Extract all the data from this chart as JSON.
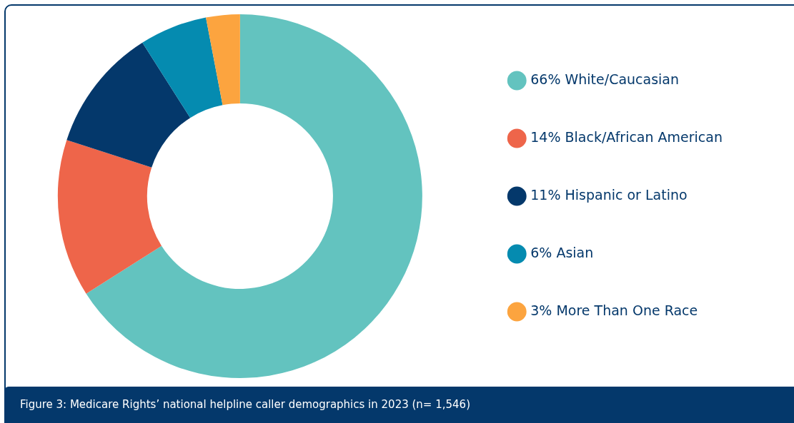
{
  "chart_data": {
    "type": "donut",
    "categories": [
      "66% White/Caucasian",
      "14% Black/African American",
      "11% Hispanic or Latino",
      "6% Asian",
      "3% More Than One Race"
    ],
    "values": [
      66,
      14,
      11,
      6,
      3
    ],
    "colors": [
      "#63c3bf",
      "#ee654a",
      "#04386b",
      "#058bb0",
      "#fca43f"
    ],
    "legend": "right",
    "annotations": [
      "Figure 3: Medicare Rights’ national helpline caller demographics in 2023 (n= 1,546)"
    ]
  }
}
